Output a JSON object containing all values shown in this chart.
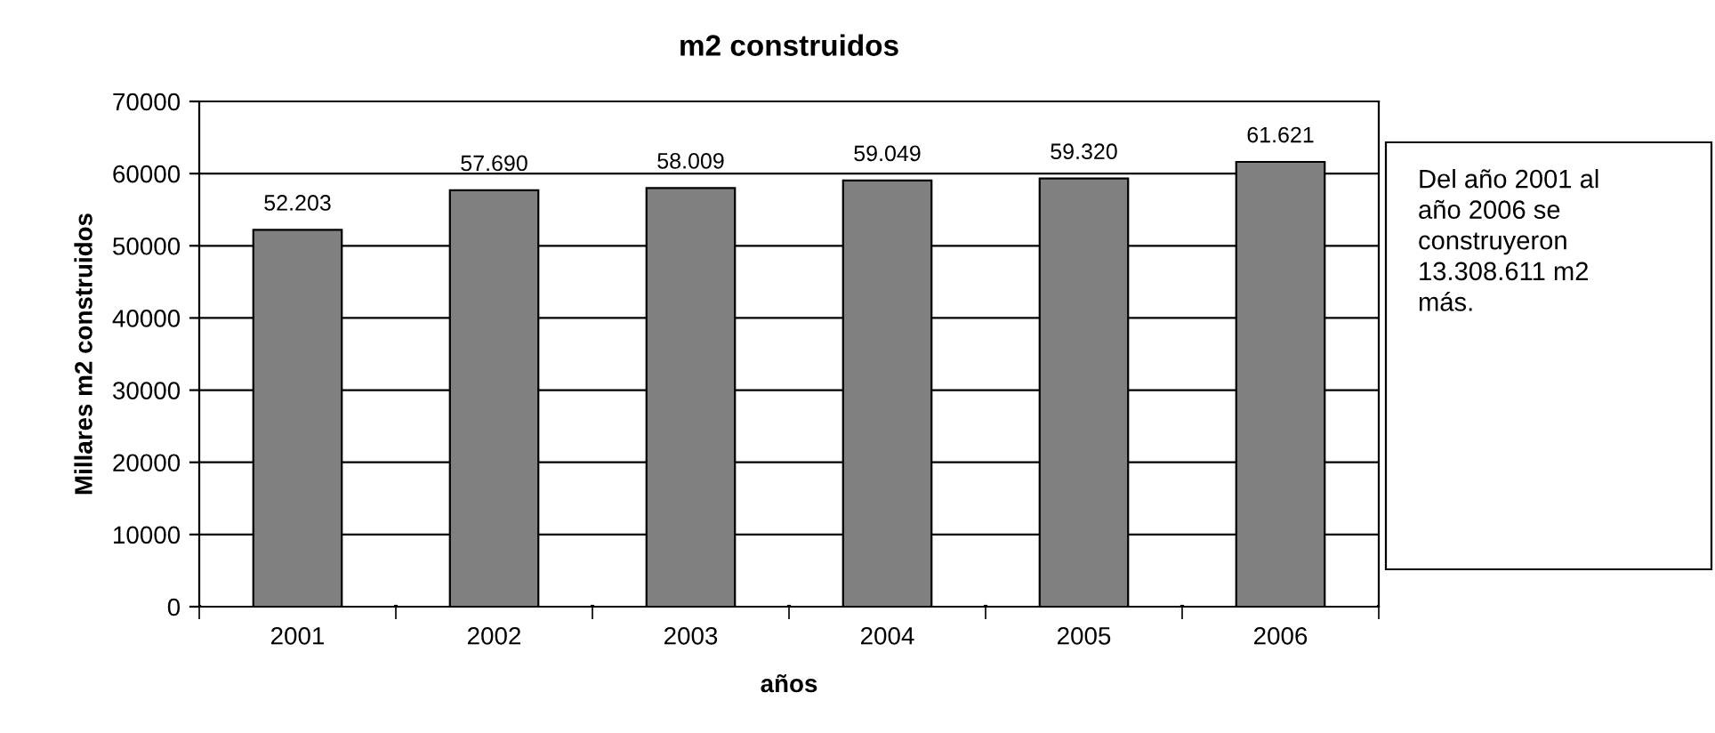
{
  "chart_data": {
    "type": "bar",
    "title": "m2 construidos",
    "xlabel": "años",
    "ylabel": "Millares m2 construidos",
    "categories": [
      "2001",
      "2002",
      "2003",
      "2004",
      "2005",
      "2006"
    ],
    "values": [
      52203,
      57690,
      58009,
      59049,
      59320,
      61621
    ],
    "value_labels": [
      "52.203",
      "57.690",
      "58.009",
      "59.049",
      "59.320",
      "61.621"
    ],
    "color": "#808080",
    "ylim": [
      0,
      70000
    ],
    "yticks": [
      0,
      10000,
      20000,
      30000,
      40000,
      50000,
      60000,
      70000
    ],
    "grid": "y",
    "legend": false,
    "annotations": [
      "Del año 2001 al\naño 2006 se\nconstruyeron\n13.308.611 m2\nmás."
    ]
  }
}
